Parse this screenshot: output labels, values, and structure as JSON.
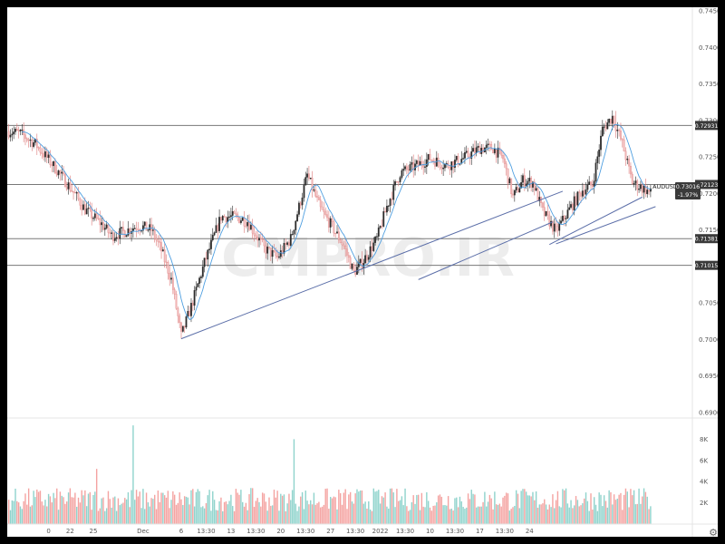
{
  "chart_data": {
    "type": "candlestick",
    "symbol": "AUDUSD",
    "last_price": "0.73016",
    "change": "-1.97%",
    "watermark": "CMPRO.IR",
    "ylim": [
      0.689,
      0.7455
    ],
    "y_ticks": [
      "0.74500",
      "0.74000",
      "0.73500",
      "0.73000",
      "0.72500",
      "0.72000",
      "0.71500",
      "0.71000",
      "0.70500",
      "0.70000",
      "0.69500",
      "0.69000"
    ],
    "y_tick_values": [
      0.745,
      0.74,
      0.735,
      0.73,
      0.725,
      0.72,
      0.715,
      0.71,
      0.705,
      0.7,
      0.695,
      0.69
    ],
    "levels": [
      {
        "label": "0.72931",
        "value": 0.72931
      },
      {
        "label": "0.72123",
        "value": 0.72123
      },
      {
        "label": "0.71381",
        "value": 0.71381
      },
      {
        "label": "0.71015",
        "value": 0.71015
      }
    ],
    "trendlines": [
      {
        "from": [
          0,
          0.7001
        ],
        "to": [
          230,
          0.7203
        ]
      },
      {
        "from": [
          143,
          0.7082
        ],
        "to": [
          224,
          0.7161
        ]
      },
      {
        "from": [
          222,
          0.713
        ],
        "to": [
          278,
          0.7195
        ]
      },
      {
        "from": [
          226,
          0.7131
        ],
        "to": [
          286,
          0.7182
        ]
      }
    ],
    "x_labels": [
      {
        "label": "0",
        "i": -80
      },
      {
        "label": "22",
        "i": -67
      },
      {
        "label": "25",
        "i": -53
      },
      {
        "label": "Dec",
        "i": -23
      },
      {
        "label": "6",
        "i": 0
      },
      {
        "label": "13:30",
        "i": 15
      },
      {
        "label": "13",
        "i": 30
      },
      {
        "label": "13:30",
        "i": 45
      },
      {
        "label": "20",
        "i": 60
      },
      {
        "label": "13:30",
        "i": 75
      },
      {
        "label": "27",
        "i": 90
      },
      {
        "label": "13:30",
        "i": 105
      },
      {
        "label": "2022",
        "i": 120
      },
      {
        "label": "13:30",
        "i": 135
      },
      {
        "label": "10",
        "i": 150
      },
      {
        "label": "13:30",
        "i": 165
      },
      {
        "label": "17",
        "i": 180
      },
      {
        "label": "13:30",
        "i": 195
      },
      {
        "label": "24",
        "i": 210
      }
    ],
    "volume_ticks": [
      {
        "label": "8K",
        "value": 8000
      },
      {
        "label": "6K",
        "value": 6000
      },
      {
        "label": "4K",
        "value": 4000
      },
      {
        "label": "2K",
        "value": 2000
      }
    ],
    "volume_max": 9400,
    "ma_period": 9,
    "colors": {
      "up": "#26a69a",
      "down": "#ef5350",
      "body_up": "#2b2b2b",
      "body_down": "#f3b6b6",
      "ma": "#4f9fe0",
      "line": "#787878",
      "trend": "#5b6ea8"
    }
  }
}
